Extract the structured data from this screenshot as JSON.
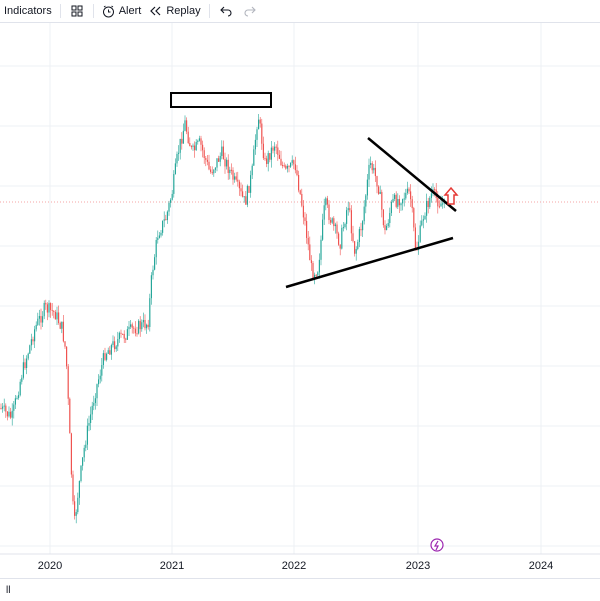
{
  "toolbar": {
    "indicators_label": "Indicators",
    "alert_label": "Alert",
    "replay_label": "Replay",
    "icons": [
      "templates-icon",
      "alert-icon",
      "replay-icon",
      "undo-icon",
      "redo-icon"
    ]
  },
  "chart": {
    "x_labels": [
      "2020",
      "2021",
      "2022",
      "2023",
      "2024"
    ],
    "annotation_icon": "lightning-icon",
    "colors": {
      "up": "#26a69a",
      "down": "#ef5350",
      "grid": "#eef0f4",
      "crosshair": "#f4a6a6",
      "trendline": "#000000",
      "arrow": "#e53935",
      "event_badge": "#9c27b0"
    }
  },
  "bottom_strip": {
    "label": "ll"
  }
}
